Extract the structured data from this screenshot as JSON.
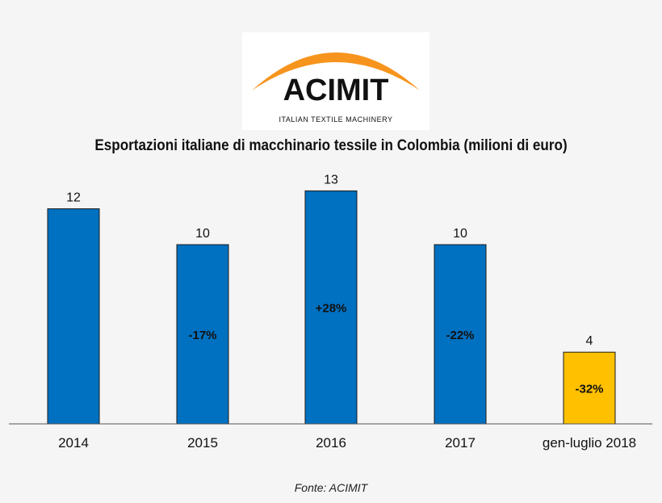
{
  "logo": {
    "name": "ACIMIT",
    "tagline": "ITALIAN TEXTILE MACHINERY",
    "arc_color": "#f7941d"
  },
  "chart_data": {
    "type": "bar",
    "title": "Esportazioni italiane di macchinario tessile in Colombia (milioni di euro)",
    "categories": [
      "2014",
      "2015",
      "2016",
      "2017",
      "gen-luglio 2018"
    ],
    "values": [
      12,
      10,
      13,
      10,
      4
    ],
    "change_labels": [
      "",
      "-17%",
      "+28%",
      "-22%",
      "-32%"
    ],
    "colors": [
      "#0070c0",
      "#0070c0",
      "#0070c0",
      "#0070c0",
      "#ffc000"
    ],
    "ylim": [
      0,
      14
    ],
    "grid": false,
    "source": "Fonte: ACIMIT"
  }
}
